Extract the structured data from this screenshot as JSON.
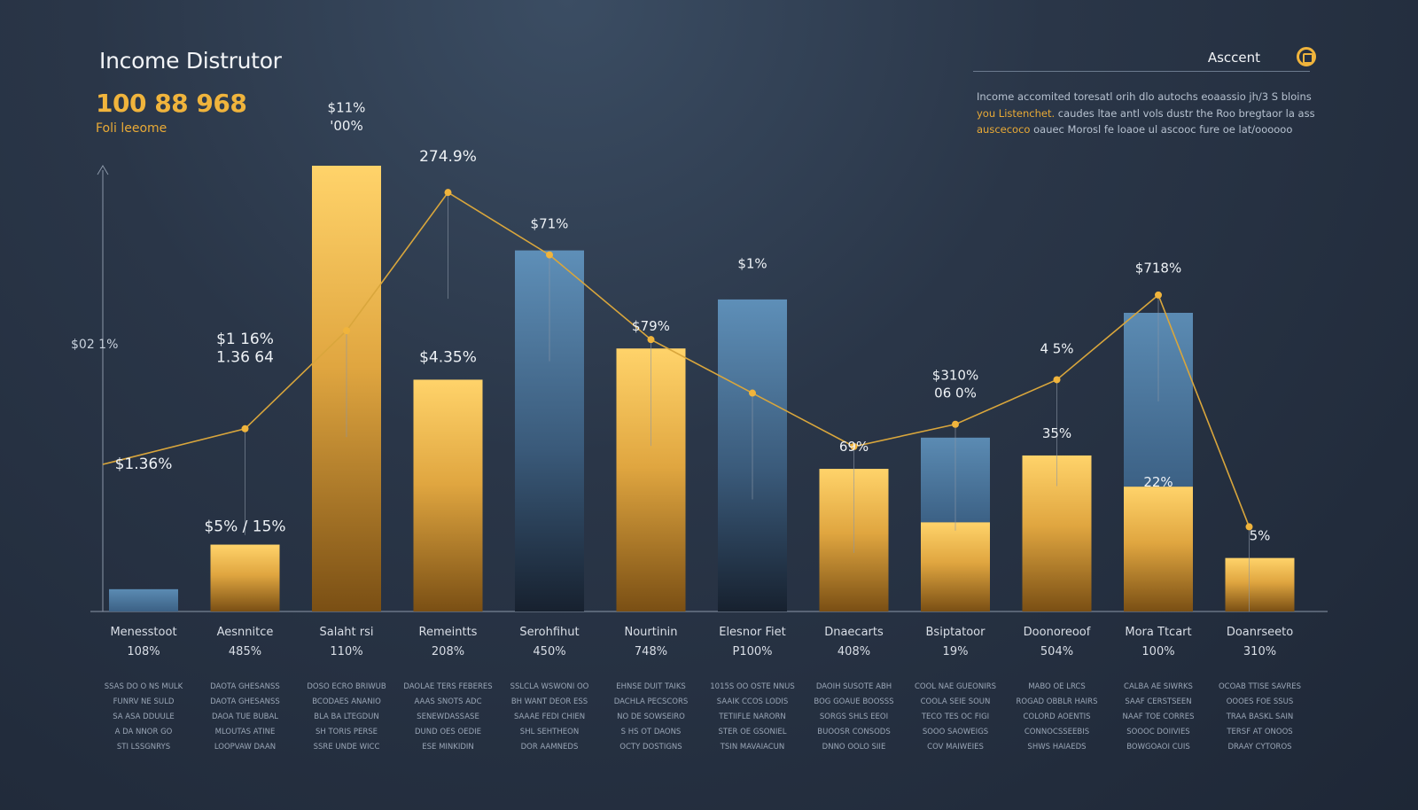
{
  "header": {
    "title": "Income Distrutor",
    "big_number": "100 88 968",
    "big_sub": "Foli leeome",
    "account_label": "Asccent",
    "description_hl1": "you Listenchet.",
    "description": "Income accomited toresatl orih dlo autochs eoaassio jh/3 S bloins",
    "description2": "caudes ltae antl vols dustr the Roo bregtaor la ass",
    "description_hl2": "auscecoco",
    "description3": "oauec Morosl fe loaoe ul ascooc fure oe lat/oooooo"
  },
  "colors": {
    "gold": "#f0b43c",
    "blue": "#5b8bb3",
    "line": "#d9a63c"
  },
  "icons": {
    "account": "account-circle-icon"
  },
  "chart_data": {
    "type": "bar",
    "title": "Income Distrutor",
    "ylim": [
      0,
      100
    ],
    "grid": false,
    "categories": [
      "Menesstoot",
      "Aesnnitce",
      "Salaht rsi",
      "Remeintts",
      "Serohfihut",
      "Nourtinin",
      "Elesnor Fiet",
      "Dnaecarts",
      "Bsiptatoor",
      "Doonoreoof",
      "Mora Ttcart",
      "Doanrseeto"
    ],
    "category_values": [
      "108%",
      "485%",
      "110%",
      "208%",
      "450%",
      "748%",
      "P100%",
      "408%",
      "19%",
      "504%",
      "100%",
      "310%"
    ],
    "category_notes": [
      [
        "SSAS DO O NS MULK",
        "FUNRV NE SULD",
        "SA ASA DDUULE",
        "A DA NNOR GO",
        "STI LSSGNRYS"
      ],
      [
        "DAOTA GHESANSS",
        "DAOTA GHESANSS",
        "DAOA TUE BUBAL",
        "MLOUTAS ATINE",
        "LOOPVAW DAAN"
      ],
      [
        "DOSO ECRO BRIWUB",
        "BCODAES ANANIO",
        "BLA BA LTEGDUN",
        "SH TORIS PERSE",
        "SSRE UNDE WICC"
      ],
      [
        "DAOLAE TERS FEBERES",
        "AAAS SNOTS ADC",
        "SENEWDASSASE",
        "DUND OES OEDIE",
        "ESE MINKIDIN"
      ],
      [
        "SSLCLA WSWONI OO",
        "BH WANT DEOR ESS",
        "SAAAE FEDI CHIEN",
        "SHL SEHTHEON",
        "DOR AAMNEDS"
      ],
      [
        "EHNSE DUIT TAIKS",
        "DACHLA PECSCORS",
        "NO DE SOWSEIRO",
        "S HS OT DAONS",
        "OCTY DOSTIGNS"
      ],
      [
        "1015S OO OSTE NNUS",
        "SAAIK CCOS LODIS",
        "TETIIFLE NARORN",
        "STER OE GSONIEL",
        "TSIN MAVAIACUN"
      ],
      [
        "DAOIH SUSOTE ABH",
        "BOG GOAUE BOOSSS",
        "SORGS SHLS EEOI",
        "BUOOSR CONSODS",
        "DNNO OOLO SIIE"
      ],
      [
        "COOL NAE GUEONIRS",
        "COOLA SEIE SOUN",
        "TECO TES OC FIGI",
        "SOOO SAOWEIGS",
        "COV MAIWEIES"
      ],
      [
        "MABO OE LRCS",
        "ROGAD OBBLR HAIRS",
        "COLORD AOENTIS",
        "CONNOCSSEEBIS",
        "SHWS HAIAEDS"
      ],
      [
        "CALBA AE SIWRKS",
        "SAAF CERSTSEEN",
        "NAAF TOE CORRES",
        "SOOOC DOIIVIES",
        "BOWGOAOI CUIS"
      ],
      [
        "OCOAB TTISE SAVRES",
        "OOOES FOE SSUS",
        "TRAA BASKL SAIN",
        "TERSF AT ONOOS",
        "DRAAY CYTOROS"
      ]
    ],
    "series": [
      {
        "values": [
          5,
          15,
          100,
          52,
          81,
          59,
          70,
          32,
          20,
          35,
          28,
          12
        ]
      },
      {
        "values": [
          0,
          0,
          0,
          0,
          0,
          0,
          0,
          0,
          39,
          0,
          67,
          0
        ]
      }
    ],
    "line_values": [
      33,
      41,
      63,
      94,
      80,
      61,
      49,
      37,
      42,
      52,
      71,
      19
    ],
    "data_labels": [
      {
        "text": "$1.36%",
        "x": 0,
        "y": 32
      },
      {
        "text": "$5% / 15%",
        "x": 1,
        "y": 18
      },
      {
        "text": "$1 16%",
        "x": 1,
        "y": 60
      },
      {
        "text": "1.36 64",
        "x": 1,
        "y": 56
      },
      {
        "text": "$11%",
        "x": 2,
        "y": 112
      },
      {
        "text": "'00%",
        "x": 2,
        "y": 108
      },
      {
        "text": "274.9%",
        "x": 3,
        "y": 101
      },
      {
        "text": "$4.35%",
        "x": 3,
        "y": 56
      },
      {
        "text": "$71%",
        "x": 4,
        "y": 86
      },
      {
        "text": "$79%",
        "x": 5,
        "y": 63
      },
      {
        "text": "$1%",
        "x": 6,
        "y": 77
      },
      {
        "text": "69%",
        "x": 7,
        "y": 36
      },
      {
        "text": "$310%",
        "x": 8,
        "y": 52
      },
      {
        "text": "06 0%",
        "x": 8,
        "y": 48
      },
      {
        "text": "4 5%",
        "x": 9,
        "y": 58
      },
      {
        "text": "35%",
        "x": 9,
        "y": 39
      },
      {
        "text": "$718%",
        "x": 10,
        "y": 76
      },
      {
        "text": "22%",
        "x": 10,
        "y": 28
      },
      {
        "text": "5%",
        "x": 11,
        "y": 16
      }
    ],
    "side_label": "$02 1%",
    "side_label_value": 60
  }
}
